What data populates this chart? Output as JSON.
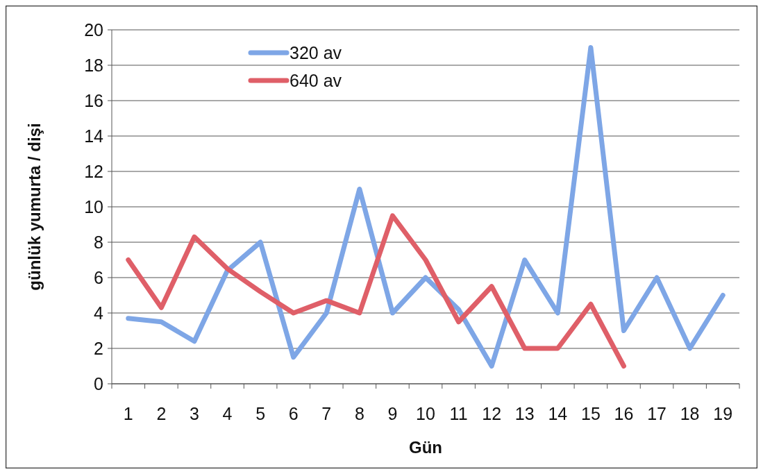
{
  "chart_data": {
    "type": "line",
    "xlabel": "Gün",
    "ylabel": "günlük yumurta / dişi",
    "categories": [
      "1",
      "2",
      "3",
      "4",
      "5",
      "6",
      "7",
      "8",
      "9",
      "10",
      "11",
      "12",
      "13",
      "14",
      "15",
      "16",
      "17",
      "18",
      "19"
    ],
    "series": [
      {
        "name": "320 av",
        "color": "#7ea6e6",
        "values": [
          3.7,
          3.5,
          2.4,
          6.4,
          8.0,
          1.5,
          4.0,
          11.0,
          4.0,
          6.0,
          4.2,
          1.0,
          7.0,
          4.0,
          19.0,
          3.0,
          6.0,
          2.0,
          5.0
        ]
      },
      {
        "name": "640 av",
        "color": "#df5f68",
        "values": [
          7.0,
          4.3,
          8.3,
          6.5,
          5.2,
          4.0,
          4.7,
          4.0,
          9.5,
          7.0,
          3.5,
          5.5,
          2.0,
          2.0,
          4.5,
          1.0,
          null,
          null,
          null
        ]
      }
    ],
    "ylim": [
      0,
      20
    ],
    "yticks": [
      0,
      2,
      4,
      6,
      8,
      10,
      12,
      14,
      16,
      18,
      20
    ],
    "grid": "y",
    "legend": "top",
    "marker": "none",
    "line_style": "solid"
  }
}
